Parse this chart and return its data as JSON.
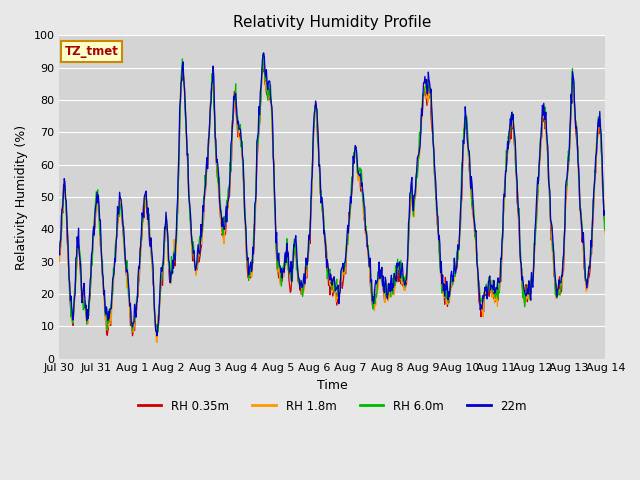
{
  "title": "Relativity Humidity Profile",
  "xlabel": "Time",
  "ylabel": "Relativity Humidity (%)",
  "ylim": [
    0,
    100
  ],
  "annotation_text": "TZ_tmet",
  "legend_labels": [
    "RH 0.35m",
    "RH 1.8m",
    "RH 6.0m",
    "22m"
  ],
  "line_colors": [
    "#cc0000",
    "#ff9900",
    "#00bb00",
    "#0000cc"
  ],
  "background_color": "#e8e8e8",
  "plot_bg_color": "#d4d4d4",
  "title_fontsize": 11,
  "label_fontsize": 9,
  "tick_fontsize": 8,
  "x_ticks_labels": [
    "Jul 30",
    "Jul 31",
    "Aug 1",
    "Aug 2",
    "Aug 3",
    "Aug 4",
    "Aug 5",
    "Aug 6",
    "Aug 7",
    "Aug 8",
    "Aug 9",
    "Aug 10",
    "Aug 11",
    "Aug 12",
    "Aug 13",
    "Aug 14"
  ],
  "x_ticks_positions": [
    0,
    1,
    2,
    3,
    4,
    5,
    6,
    7,
    8,
    9,
    10,
    11,
    12,
    13,
    14,
    15
  ],
  "base_profile": [
    30,
    45,
    52,
    35,
    17,
    12,
    25,
    35,
    22,
    17,
    12,
    18,
    32,
    43,
    49,
    35,
    22,
    11,
    10,
    16,
    28,
    39,
    48,
    42,
    30,
    22,
    11,
    9,
    15,
    25,
    38,
    47,
    46,
    36,
    27,
    10,
    9,
    22,
    30,
    42,
    27,
    26,
    31,
    43,
    76,
    88,
    75,
    55,
    38,
    30,
    27,
    33,
    38,
    51,
    60,
    75,
    85,
    64,
    52,
    43,
    38,
    44,
    52,
    70,
    80,
    71,
    68,
    57,
    36,
    26,
    27,
    36,
    60,
    74,
    89,
    87,
    81,
    80,
    62,
    35,
    26,
    25,
    27,
    32,
    25,
    27,
    34,
    25,
    21,
    22,
    27,
    34,
    52,
    74,
    72,
    55,
    45,
    35,
    25,
    22,
    21,
    20,
    19,
    25,
    27,
    36,
    46,
    56,
    64,
    55,
    54,
    45,
    36,
    28,
    18,
    17,
    22,
    26,
    22,
    20,
    20,
    21,
    22,
    26,
    27,
    24,
    22,
    30,
    50,
    46,
    53,
    62,
    73,
    82,
    81,
    83,
    70,
    55,
    40,
    27,
    20,
    19,
    18,
    22,
    25,
    30,
    38,
    60,
    72,
    65,
    53,
    44,
    33,
    20,
    14,
    19,
    20,
    22,
    20,
    19,
    20,
    28,
    45,
    60,
    68,
    73,
    65,
    49,
    32,
    20,
    19,
    20,
    22,
    30,
    45,
    60,
    72,
    75,
    62,
    44,
    32,
    20,
    20,
    22,
    35,
    55,
    65,
    85,
    75,
    63,
    44,
    35,
    22,
    25,
    35,
    52,
    67,
    72,
    55,
    40
  ]
}
